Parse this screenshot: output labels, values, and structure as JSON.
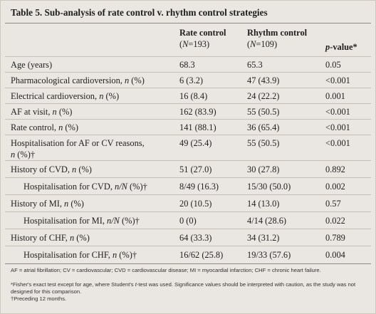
{
  "table": {
    "title": "Table 5. Sub-analysis of rate control v. rhythm control strategies",
    "headers": {
      "rate": "Rate control",
      "rate_n_label": "N",
      "rate_n_value": "=193)",
      "rhythm": "Rhythm control",
      "rhythm_n_label": "N",
      "rhythm_n_value": "=109)",
      "pvalue_p": "p",
      "pvalue_rest": "-value*"
    },
    "rows": [
      {
        "label": "Age (years)",
        "rate": "68.3",
        "rhythm": "65.3",
        "p": "0.05"
      },
      {
        "label_pre": "Pharmacological cardioversion, ",
        "label_it": "n",
        "label_post": " (%)",
        "rate": "6 (3.2)",
        "rhythm": "47 (43.9)",
        "p": "<0.001"
      },
      {
        "label_pre": "Electrical cardioversion, ",
        "label_it": "n",
        "label_post": " (%)",
        "rate": "16 (8.4)",
        "rhythm": "24 (22.2)",
        "p": "0.001"
      },
      {
        "label_pre": "AF at visit, ",
        "label_it": "n",
        "label_post": " (%)",
        "rate": "162 (83.9)",
        "rhythm": "55 (50.5)",
        "p": "<0.001"
      },
      {
        "label_pre": "Rate control, ",
        "label_it": "n",
        "label_post": " (%)",
        "rate": "141 (88.1)",
        "rhythm": "36 (65.4)",
        "p": "<0.001"
      },
      {
        "label_line1": "Hospitalisation for AF or CV reasons,",
        "label_it": "n",
        "label_post": " (%)†",
        "rate": "49 (25.4)",
        "rhythm": "55 (50.5)",
        "p": "<0.001"
      },
      {
        "label_pre": "History of CVD, ",
        "label_it": "n",
        "label_post": " (%)",
        "rate": "51 (27.0)",
        "rhythm": "30 (27.8)",
        "p": "0.892"
      },
      {
        "label_pre": "Hospitalisation for CVD, ",
        "label_it": "n/N",
        "label_post": " (%)†",
        "rate": "8/49 (16.3)",
        "rhythm": "15/30 (50.0)",
        "p": "0.002"
      },
      {
        "label_pre": "History of MI, ",
        "label_it": "n",
        "label_post": " (%)",
        "rate": "20 (10.5)",
        "rhythm": "14 (13.0)",
        "p": "0.57"
      },
      {
        "label_pre": "Hospitalisation for MI, ",
        "label_it": "n/N",
        "label_post": " (%)†",
        "rate": "0 (0)",
        "rhythm": "4/14 (28.6)",
        "p": "0.022"
      },
      {
        "label_pre": "History of CHF, ",
        "label_it": "n",
        "label_post": " (%)",
        "rate": "64 (33.3)",
        "rhythm": "34 (31.2)",
        "p": "0.789"
      },
      {
        "label_pre": "Hospitalisation for CHF, ",
        "label_it": "n",
        "label_post": " (%)†",
        "rate": "16/62 (25.8)",
        "rhythm": "19/33 (57.6)",
        "p": "0.004"
      }
    ],
    "footnotes": {
      "abbrev": "AF = atrial fibrillation; CV = cardiovascular; CVD = cardiovascular disease; MI = myocardial infarction; CHF = chronic heart failure.",
      "star_pre": "*Fisher's exact test except for age, where Student's ",
      "star_it": "t",
      "star_post": "-test was used. Significance values should be interpreted with caution, as the study was not designed for this comparison.",
      "dagger": "†Preceding 12 months."
    }
  }
}
